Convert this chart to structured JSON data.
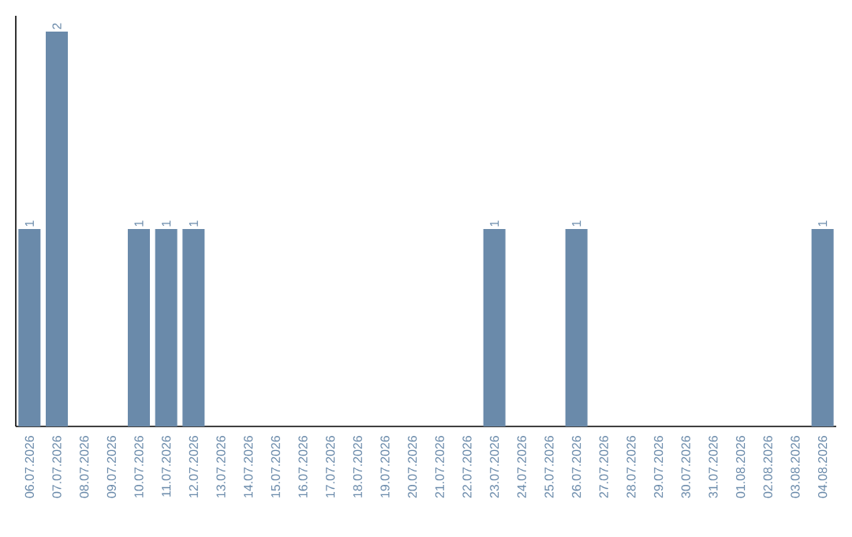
{
  "chart_data": {
    "type": "bar",
    "color": "#6a8aaa",
    "categories": [
      "06.07.2026",
      "07.07.2026",
      "08.07.2026",
      "09.07.2026",
      "10.07.2026",
      "11.07.2026",
      "12.07.2026",
      "13.07.2026",
      "14.07.2026",
      "15.07.2026",
      "16.07.2026",
      "17.07.2026",
      "18.07.2026",
      "19.07.2026",
      "20.07.2026",
      "21.07.2026",
      "22.07.2026",
      "23.07.2026",
      "24.07.2026",
      "25.07.2026",
      "26.07.2026",
      "27.07.2026",
      "28.07.2026",
      "29.07.2026",
      "30.07.2026",
      "31.07.2026",
      "01.08.2026",
      "02.08.2026",
      "03.08.2026",
      "04.08.2026"
    ],
    "values": [
      1,
      2,
      0,
      0,
      1,
      1,
      1,
      0,
      0,
      0,
      0,
      0,
      0,
      0,
      0,
      0,
      0,
      1,
      0,
      0,
      1,
      0,
      0,
      0,
      0,
      0,
      0,
      0,
      0,
      1
    ],
    "value_labels": [
      "1",
      "2",
      null,
      null,
      "1",
      "1",
      "1",
      null,
      null,
      null,
      null,
      null,
      null,
      null,
      null,
      null,
      null,
      "1",
      null,
      null,
      "1",
      null,
      null,
      null,
      null,
      null,
      null,
      null,
      null,
      "1"
    ]
  }
}
